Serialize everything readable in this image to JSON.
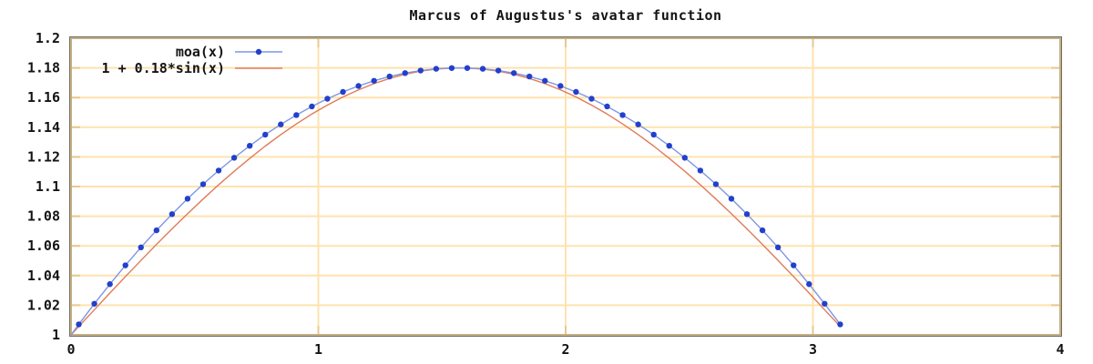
{
  "chart_data": {
    "type": "line",
    "title": "Marcus of Augustus's avatar function",
    "xlabel": "",
    "ylabel": "",
    "xlim": [
      0,
      4
    ],
    "ylim": [
      1,
      1.2
    ],
    "grid": true,
    "legend_position": "top-left-inside",
    "xticks": [
      0,
      1,
      2,
      3,
      4
    ],
    "xtick_labels": [
      "0",
      "1",
      "2",
      "3",
      "4"
    ],
    "yticks": [
      1,
      1.02,
      1.04,
      1.06,
      1.08,
      1.1,
      1.12,
      1.14,
      1.16,
      1.18,
      1.2
    ],
    "ytick_labels": [
      "1",
      "1.02",
      "1.04",
      "1.06",
      "1.08",
      "1.1",
      "1.12",
      "1.14",
      "1.16",
      "1.18",
      "1.2"
    ],
    "colors": {
      "grid": "#ffe2ae",
      "tick": "#e8c88e",
      "border_outer": "#6d6d60",
      "border_inner": "#c5b084",
      "text": "#141414"
    },
    "series": [
      {
        "name": "moa(x)",
        "style": "linespoints",
        "marker": "filled-circle",
        "point_color": "#2240cc",
        "line_color": "#7d95e5",
        "line_start": [
          0,
          1
        ],
        "points": [
          [
            0.0314,
            1.0071
          ],
          [
            0.0942,
            1.021
          ],
          [
            0.1571,
            1.0342
          ],
          [
            0.2199,
            1.0469
          ],
          [
            0.2827,
            1.059
          ],
          [
            0.3456,
            1.0705
          ],
          [
            0.4084,
            1.0814
          ],
          [
            0.4712,
            1.0918
          ],
          [
            0.5341,
            1.1016
          ],
          [
            0.5969,
            1.1108
          ],
          [
            0.6597,
            1.1194
          ],
          [
            0.7226,
            1.1275
          ],
          [
            0.7854,
            1.135
          ],
          [
            0.8482,
            1.1419
          ],
          [
            0.9111,
            1.1482
          ],
          [
            0.9739,
            1.154
          ],
          [
            1.0367,
            1.1592
          ],
          [
            1.0996,
            1.1638
          ],
          [
            1.1624,
            1.1678
          ],
          [
            1.2252,
            1.1713
          ],
          [
            1.2881,
            1.1742
          ],
          [
            1.3509,
            1.1765
          ],
          [
            1.4137,
            1.1782
          ],
          [
            1.4765,
            1.1794
          ],
          [
            1.5394,
            1.1799
          ],
          [
            1.6022,
            1.1799
          ],
          [
            1.665,
            1.1794
          ],
          [
            1.7279,
            1.1782
          ],
          [
            1.7907,
            1.1765
          ],
          [
            1.8535,
            1.1742
          ],
          [
            1.9164,
            1.1713
          ],
          [
            1.9792,
            1.1678
          ],
          [
            2.042,
            1.1638
          ],
          [
            2.1049,
            1.1592
          ],
          [
            2.1677,
            1.154
          ],
          [
            2.2305,
            1.1482
          ],
          [
            2.2934,
            1.1419
          ],
          [
            2.3562,
            1.135
          ],
          [
            2.419,
            1.1275
          ],
          [
            2.4819,
            1.1194
          ],
          [
            2.5447,
            1.1108
          ],
          [
            2.6075,
            1.1016
          ],
          [
            2.6704,
            1.0918
          ],
          [
            2.7332,
            1.0814
          ],
          [
            2.796,
            1.0705
          ],
          [
            2.8588,
            1.059
          ],
          [
            2.9217,
            1.0469
          ],
          [
            2.9845,
            1.0342
          ],
          [
            3.0473,
            1.021
          ],
          [
            3.1102,
            1.0071
          ]
        ]
      },
      {
        "name": "1 + 0.18*sin(x)",
        "style": "line",
        "marker": null,
        "line_color": "#e07b58",
        "points": [
          [
            0,
            1
          ],
          [
            0.0314,
            1.0057
          ],
          [
            0.0942,
            1.0169
          ],
          [
            0.1571,
            1.0282
          ],
          [
            0.2199,
            1.0393
          ],
          [
            0.2827,
            1.0502
          ],
          [
            0.3456,
            1.061
          ],
          [
            0.4084,
            1.0715
          ],
          [
            0.4712,
            1.0817
          ],
          [
            0.5341,
            1.0916
          ],
          [
            0.5969,
            1.1012
          ],
          [
            0.6597,
            1.1103
          ],
          [
            0.7226,
            1.119
          ],
          [
            0.7854,
            1.1273
          ],
          [
            0.8482,
            1.135
          ],
          [
            0.9111,
            1.1422
          ],
          [
            0.9739,
            1.1489
          ],
          [
            1.0367,
            1.1549
          ],
          [
            1.0996,
            1.1604
          ],
          [
            1.1624,
            1.1652
          ],
          [
            1.2252,
            1.1694
          ],
          [
            1.2881,
            1.1729
          ],
          [
            1.3509,
            1.1757
          ],
          [
            1.4137,
            1.1778
          ],
          [
            1.4765,
            1.1792
          ],
          [
            1.5394,
            1.1799
          ],
          [
            1.6022,
            1.1799
          ],
          [
            1.665,
            1.1792
          ],
          [
            1.7279,
            1.1778
          ],
          [
            1.7907,
            1.1757
          ],
          [
            1.8535,
            1.1729
          ],
          [
            1.9164,
            1.1694
          ],
          [
            1.9792,
            1.1652
          ],
          [
            2.042,
            1.1604
          ],
          [
            2.1049,
            1.1549
          ],
          [
            2.1677,
            1.1489
          ],
          [
            2.2305,
            1.1422
          ],
          [
            2.2934,
            1.135
          ],
          [
            2.3562,
            1.1273
          ],
          [
            2.419,
            1.119
          ],
          [
            2.4819,
            1.1103
          ],
          [
            2.5447,
            1.1012
          ],
          [
            2.6075,
            1.0916
          ],
          [
            2.6704,
            1.0817
          ],
          [
            2.7332,
            1.0715
          ],
          [
            2.796,
            1.061
          ],
          [
            2.8588,
            1.0502
          ],
          [
            2.9217,
            1.0393
          ],
          [
            2.9845,
            1.0282
          ],
          [
            3.0473,
            1.0169
          ],
          [
            3.1102,
            1.0057
          ]
        ]
      }
    ]
  }
}
